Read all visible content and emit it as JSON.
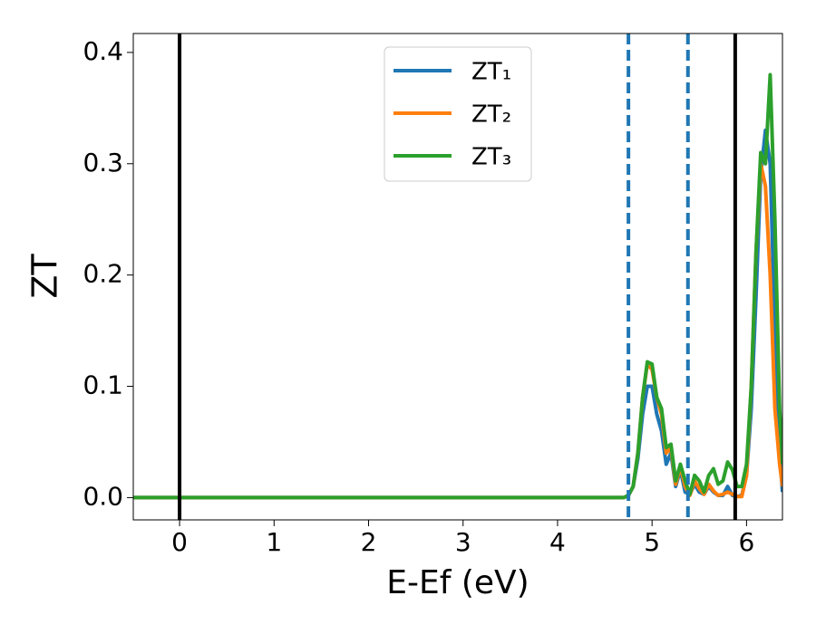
{
  "chart_data": {
    "type": "line",
    "xlabel": "E-Ef (eV)",
    "ylabel": "ZT",
    "x": [
      -0.5,
      4.6,
      4.7,
      4.75,
      4.8,
      4.85,
      4.9,
      4.95,
      5.0,
      5.05,
      5.1,
      5.15,
      5.2,
      5.25,
      5.3,
      5.35,
      5.4,
      5.45,
      5.5,
      5.55,
      5.6,
      5.65,
      5.7,
      5.75,
      5.8,
      5.85,
      5.9,
      5.95,
      6.0,
      6.05,
      6.1,
      6.15,
      6.2,
      6.25,
      6.3,
      6.35,
      6.38
    ],
    "series": [
      {
        "name": "ZT₁",
        "color": "#1f77b4",
        "values": [
          0,
          0,
          0,
          0.002,
          0.01,
          0.035,
          0.075,
          0.1,
          0.1,
          0.075,
          0.06,
          0.03,
          0.04,
          0.01,
          0.025,
          0.005,
          0.003,
          0.012,
          0.005,
          0.003,
          0.01,
          0.005,
          0.002,
          0.002,
          0.01,
          0.002,
          0.001,
          0.002,
          0.02,
          0.08,
          0.18,
          0.29,
          0.33,
          0.3,
          0.15,
          0.04,
          0.005
        ]
      },
      {
        "name": "ZT₂",
        "color": "#ff7f0e",
        "values": [
          0,
          0,
          0,
          0.002,
          0.01,
          0.04,
          0.09,
          0.12,
          0.115,
          0.09,
          0.075,
          0.04,
          0.045,
          0.012,
          0.028,
          0.01,
          0.002,
          0.015,
          0.008,
          0.003,
          0.012,
          0.006,
          0.002,
          0.003,
          0.005,
          0.003,
          0.001,
          0.001,
          0.02,
          0.1,
          0.22,
          0.3,
          0.28,
          0.2,
          0.08,
          0.03,
          0.01
        ]
      },
      {
        "name": "ZT₃",
        "color": "#2ca02c",
        "values": [
          0,
          0,
          0,
          0.002,
          0.01,
          0.04,
          0.09,
          0.122,
          0.12,
          0.09,
          0.08,
          0.045,
          0.048,
          0.015,
          0.03,
          0.015,
          0.003,
          0.02,
          0.015,
          0.005,
          0.02,
          0.026,
          0.012,
          0.015,
          0.032,
          0.025,
          0.01,
          0.01,
          0.03,
          0.1,
          0.22,
          0.31,
          0.3,
          0.38,
          0.25,
          0.08,
          0.03
        ]
      }
    ],
    "vlines": [
      {
        "x": 0,
        "color": "#000000",
        "style": "solid"
      },
      {
        "x": 4.75,
        "color": "#1f77b4",
        "style": "dashed"
      },
      {
        "x": 5.38,
        "color": "#1f77b4",
        "style": "dashed"
      },
      {
        "x": 5.88,
        "color": "#000000",
        "style": "solid"
      }
    ],
    "xlim": [
      -0.49,
      6.38
    ],
    "xticks": [
      0,
      1,
      2,
      3,
      4,
      5,
      6
    ],
    "ylim": [
      -0.02,
      0.417
    ],
    "yticks": [
      {
        "value": 0,
        "label": "0.0"
      },
      0.1,
      0.2,
      0.3,
      0.4
    ],
    "legend": "upper center"
  }
}
